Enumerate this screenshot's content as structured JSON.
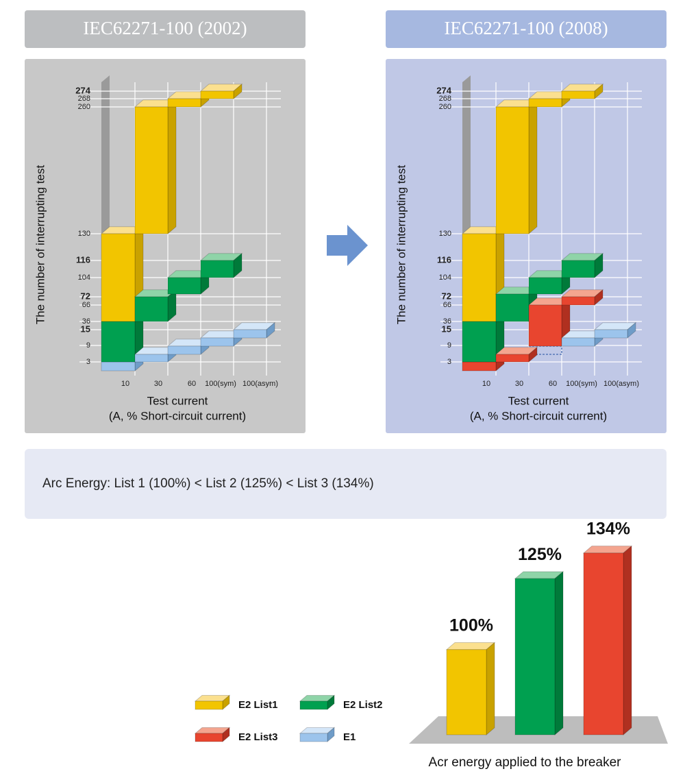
{
  "panels": [
    {
      "header": "IEC62271-100 (2002)",
      "y_axis_title": "The number of interrupting test",
      "y_ticks": [
        274,
        268,
        260,
        130,
        116,
        104,
        72,
        66,
        36,
        15,
        9,
        3
      ],
      "x_ticks": [
        "10",
        "30",
        "60",
        "100(sym)",
        "100(asym)"
      ],
      "x_axis_title": "Test current",
      "x_axis_subtitle": "(A, %   Short-circuit current)"
    },
    {
      "header": "IEC62271-100 (2008)",
      "y_axis_title": "The number of interrupting test",
      "y_ticks": [
        274,
        268,
        260,
        130,
        116,
        104,
        72,
        66,
        36,
        15,
        9,
        3
      ],
      "x_ticks": [
        "10",
        "30",
        "60",
        "100(sym)",
        "100(asym)"
      ],
      "x_axis_title": "Test current",
      "x_axis_subtitle": "(A, %   Short-circuit current)"
    }
  ],
  "info": "Arc Energy: List 1 (100%) < List 2 (125%) < List 3 (134%)",
  "legend": [
    {
      "name": "E2 List1",
      "color": "#f2c500"
    },
    {
      "name": "E2 List2",
      "color": "#00a050"
    },
    {
      "name": "E2 List3",
      "color": "#e8452f"
    },
    {
      "name": "E1",
      "color": "#9cc4ec"
    }
  ],
  "chart_data": {
    "type": "bar",
    "categories": [
      null,
      null,
      null
    ],
    "values": [
      100,
      125,
      134
    ],
    "value_labels": [
      "100%",
      "125%",
      "134%"
    ],
    "colors": [
      "#f2c500",
      "#00a050",
      "#e8452f"
    ],
    "xlabel": "Acr energy applied to the breaker",
    "ylim": [
      70,
      140
    ]
  }
}
